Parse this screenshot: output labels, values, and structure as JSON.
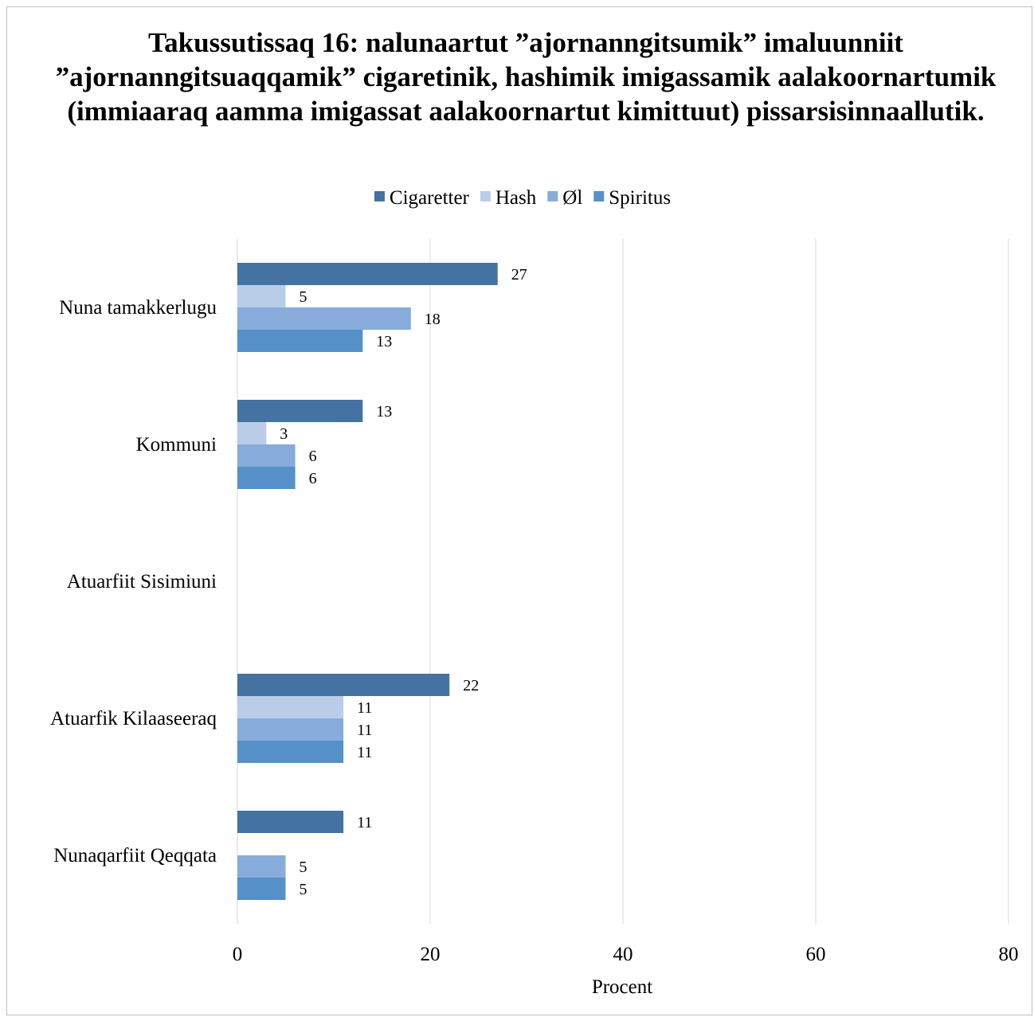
{
  "chart_data": {
    "type": "bar",
    "orientation": "horizontal",
    "title": "Takussutissaq 16: nalunaartut ”ajornanngitsumik” imaluunniit ”ajornanngitsuaqqamik” cigaretinik, hashimik imigassamik aalakoornartumik (immiaaraq aamma imigassat aalakoornartut kimittuut) pissarsisinnaallutik.",
    "xlabel": "Procent",
    "ylabel": "",
    "xlim": [
      0,
      80
    ],
    "xticks": [
      0,
      20,
      40,
      60,
      80
    ],
    "grid": true,
    "legend_position": "top",
    "categories": [
      "Nuna tamakkerlugu",
      "Kommuni",
      "Atuarfiit Sisimiuni",
      "Atuarfik Kilaaseeraq",
      "Nunaqarfiit Qeqqata"
    ],
    "series": [
      {
        "name": "Cigaretter",
        "color": "#4472a2",
        "values": [
          27,
          13,
          null,
          22,
          11
        ]
      },
      {
        "name": "Hash",
        "color": "#b9cde8",
        "values": [
          5,
          3,
          null,
          11,
          null
        ]
      },
      {
        "name": "Øl",
        "color": "#87acdb",
        "values": [
          18,
          6,
          null,
          11,
          5
        ]
      },
      {
        "name": "Spiritus",
        "color": "#5590c8",
        "values": [
          13,
          6,
          null,
          11,
          5
        ]
      }
    ]
  }
}
